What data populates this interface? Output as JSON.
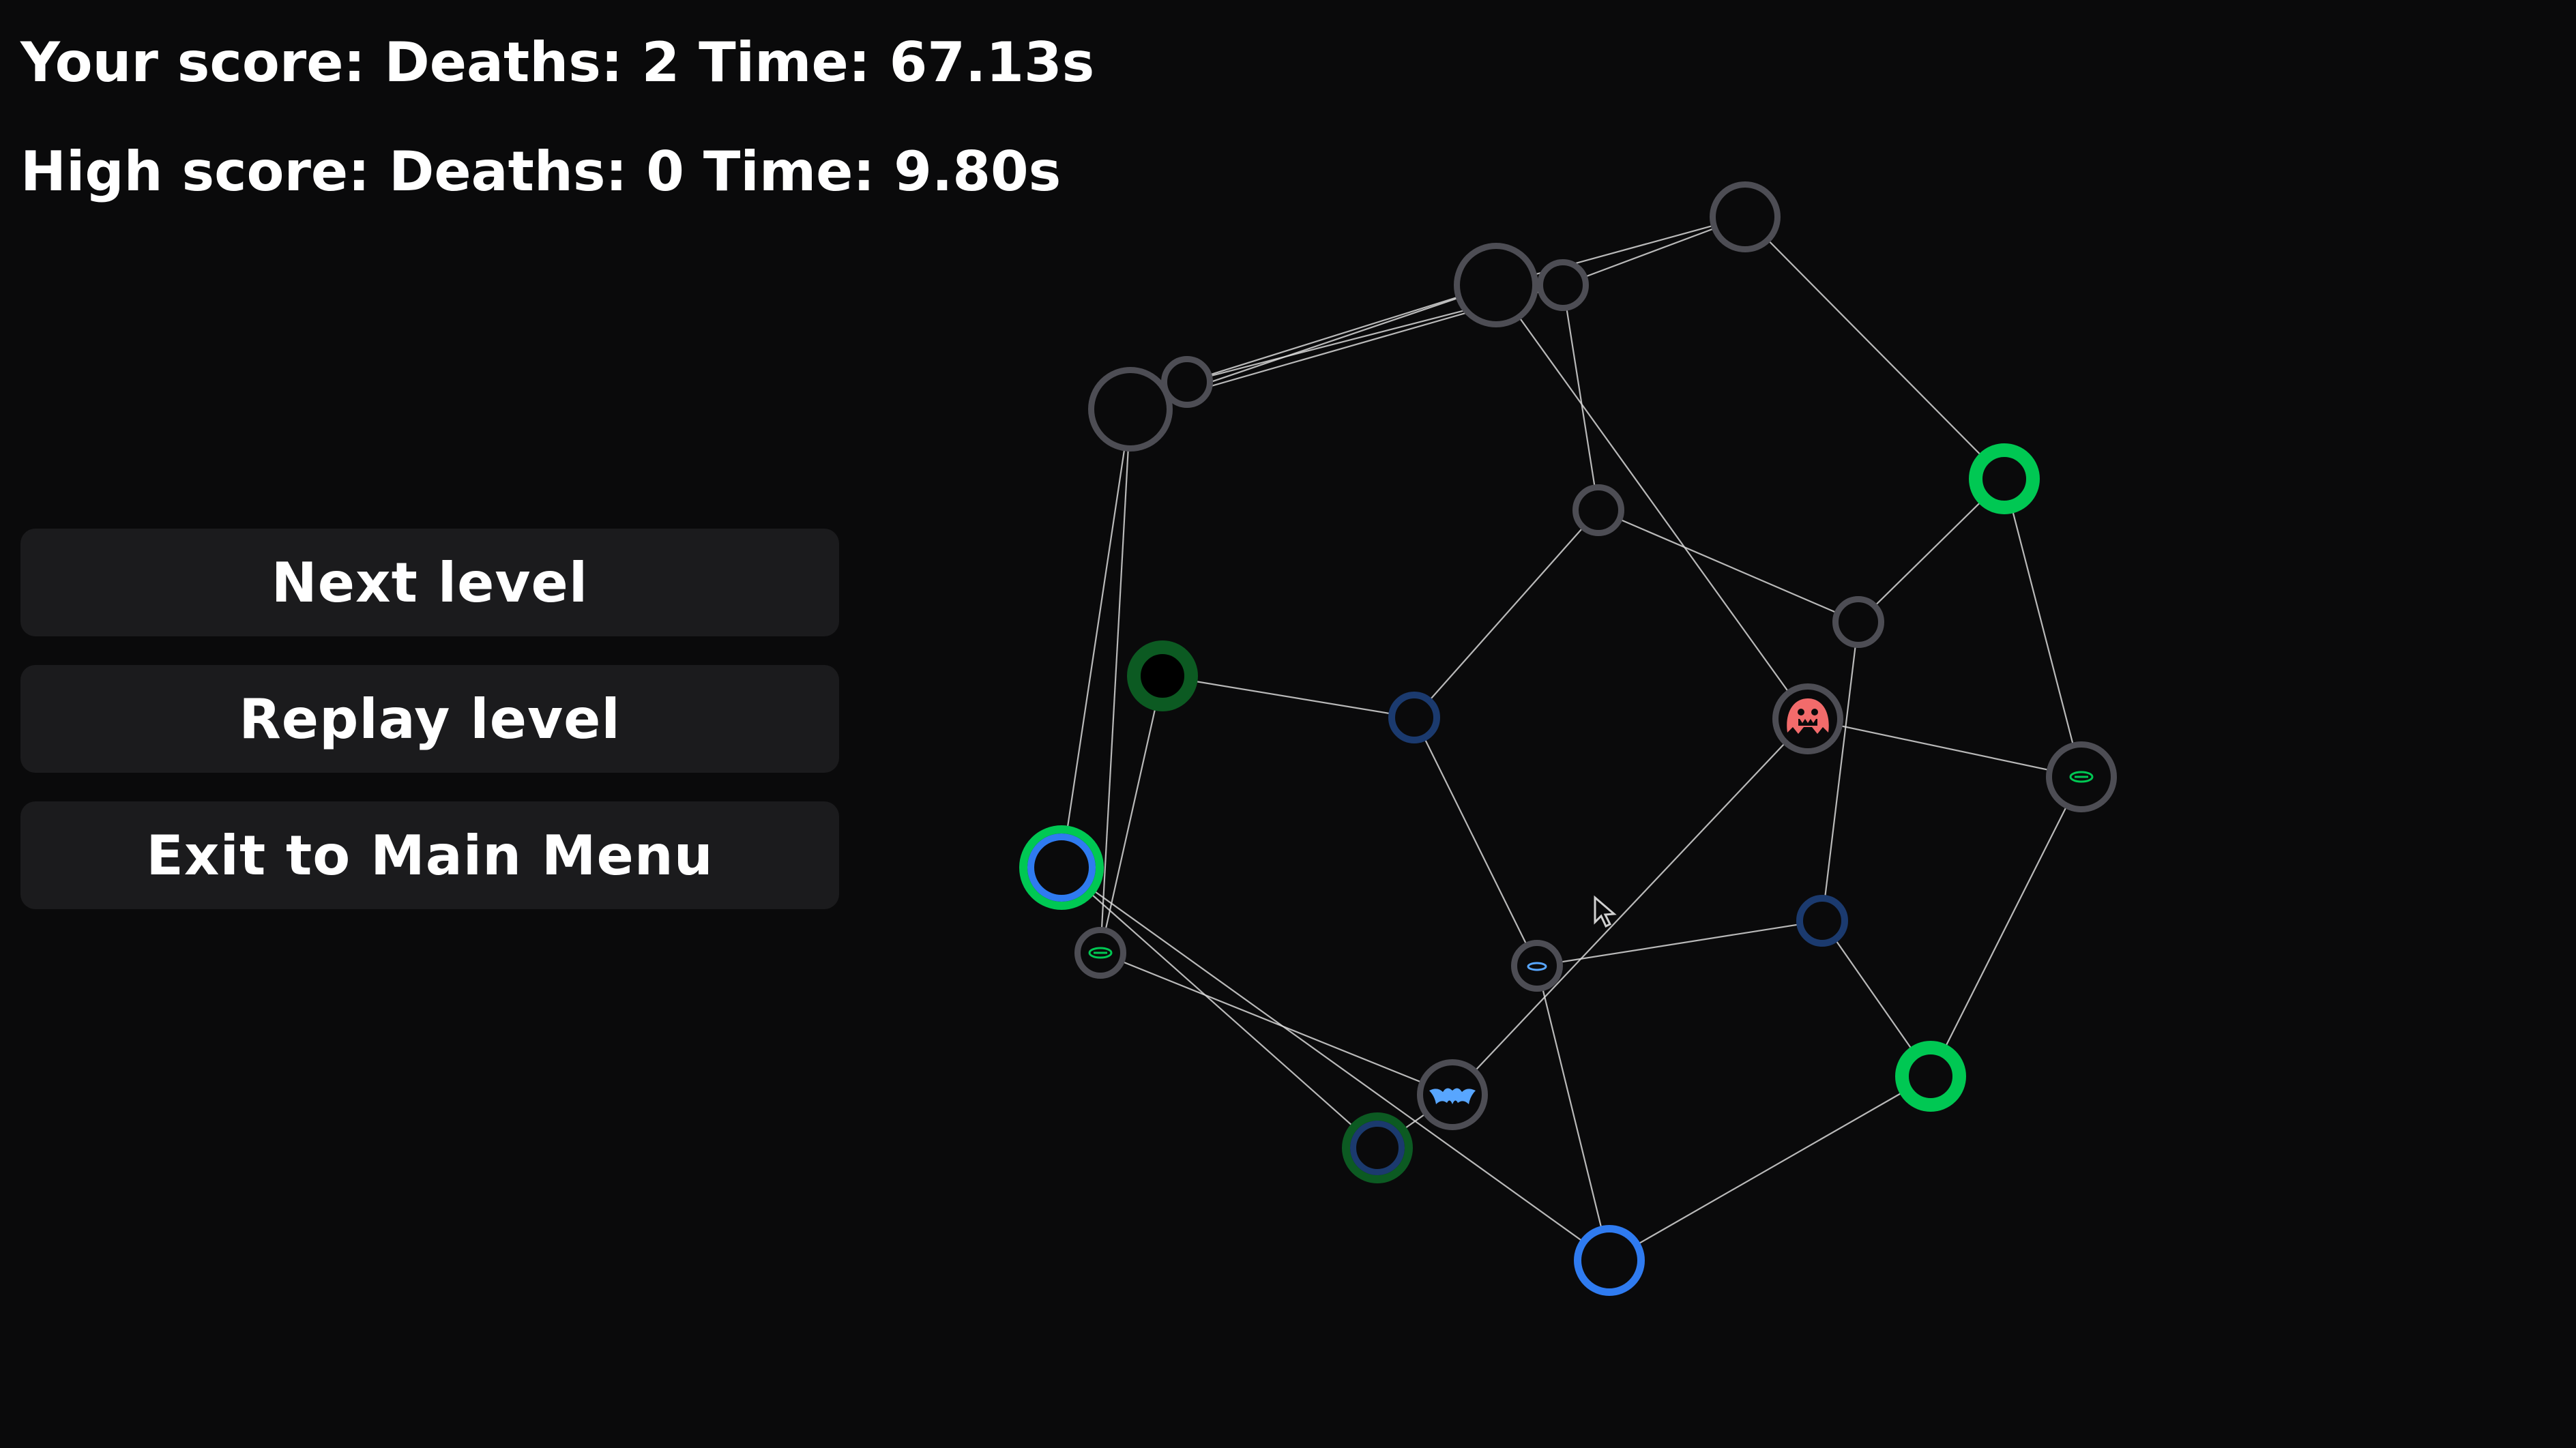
{
  "scores": {
    "current": "Your score: Deaths: 2 Time: 67.13s",
    "high": "High score: Deaths: 0 Time: 9.80s"
  },
  "menu": {
    "next_label": "Next level",
    "replay_label": "Replay level",
    "exit_label": "Exit to Main Menu"
  },
  "colors": {
    "background": "#0a0a0b",
    "button_bg": "#1b1b1d",
    "edge": "#d8d8d8",
    "node_gray": "#4d4d54",
    "node_green": "#00c853",
    "node_dark_green": "#0c5a22",
    "node_blue": "#2f7bf0",
    "node_dark_blue": "#1b3a6e",
    "enemy_red": "#f26b6b",
    "bat_blue": "#58a6ff"
  },
  "graph": {
    "nodes": [
      {
        "id": "n1",
        "style": "gray",
        "size": "medium",
        "icon": ""
      },
      {
        "id": "n2",
        "style": "gray",
        "size": "small",
        "icon": ""
      },
      {
        "id": "n3",
        "style": "gray",
        "size": "large",
        "icon": ""
      },
      {
        "id": "n4",
        "style": "gray",
        "size": "small",
        "icon": ""
      },
      {
        "id": "n5",
        "style": "gray",
        "size": "large",
        "icon": ""
      },
      {
        "id": "n6",
        "style": "green",
        "size": "medium",
        "icon": ""
      },
      {
        "id": "n7",
        "style": "gray",
        "size": "small",
        "icon": ""
      },
      {
        "id": "n8",
        "style": "gray",
        "size": "small",
        "icon": ""
      },
      {
        "id": "n9",
        "style": "gray",
        "size": "medium",
        "icon": "red-monster-icon"
      },
      {
        "id": "n10",
        "style": "gray",
        "size": "medium",
        "icon": "green-slime-icon"
      },
      {
        "id": "n11",
        "style": "darkgreen",
        "size": "medium",
        "icon": ""
      },
      {
        "id": "n12",
        "style": "darkblue",
        "size": "small",
        "icon": ""
      },
      {
        "id": "n13",
        "style": "bluegreen",
        "size": "large",
        "icon": ""
      },
      {
        "id": "n14",
        "style": "gray",
        "size": "small",
        "icon": "green-slime-icon"
      },
      {
        "id": "n15",
        "style": "gray",
        "size": "small",
        "icon": "blue-slime-icon"
      },
      {
        "id": "n16",
        "style": "darkblue",
        "size": "small",
        "icon": ""
      },
      {
        "id": "n17",
        "style": "gray",
        "size": "medium",
        "icon": "bat-icon"
      },
      {
        "id": "n18",
        "style": "darkgreenblue",
        "size": "medium",
        "icon": ""
      },
      {
        "id": "n19",
        "style": "green",
        "size": "medium",
        "icon": ""
      },
      {
        "id": "n20",
        "style": "blue",
        "size": "medium",
        "icon": ""
      }
    ],
    "edges": [
      [
        "n1",
        "n2"
      ],
      [
        "n1",
        "n3"
      ],
      [
        "n1",
        "n6"
      ],
      [
        "n2",
        "n4"
      ],
      [
        "n2",
        "n5"
      ],
      [
        "n2",
        "n7"
      ],
      [
        "n3",
        "n4"
      ],
      [
        "n3",
        "n5"
      ],
      [
        "n3",
        "n9"
      ],
      [
        "n4",
        "n5"
      ],
      [
        "n5",
        "n13"
      ],
      [
        "n5",
        "n14"
      ],
      [
        "n6",
        "n8"
      ],
      [
        "n6",
        "n10"
      ],
      [
        "n7",
        "n12"
      ],
      [
        "n7",
        "n8"
      ],
      [
        "n8",
        "n16"
      ],
      [
        "n9",
        "n10"
      ],
      [
        "n9",
        "n17"
      ],
      [
        "n10",
        "n19"
      ],
      [
        "n11",
        "n12"
      ],
      [
        "n11",
        "n14"
      ],
      [
        "n12",
        "n15"
      ],
      [
        "n13",
        "n18"
      ],
      [
        "n13",
        "n20"
      ],
      [
        "n14",
        "n17"
      ],
      [
        "n15",
        "n16"
      ],
      [
        "n15",
        "n20"
      ],
      [
        "n16",
        "n19"
      ],
      [
        "n17",
        "n18"
      ],
      [
        "n19",
        "n20"
      ]
    ]
  },
  "cursor": {
    "icon": "pointer-cursor-icon"
  }
}
